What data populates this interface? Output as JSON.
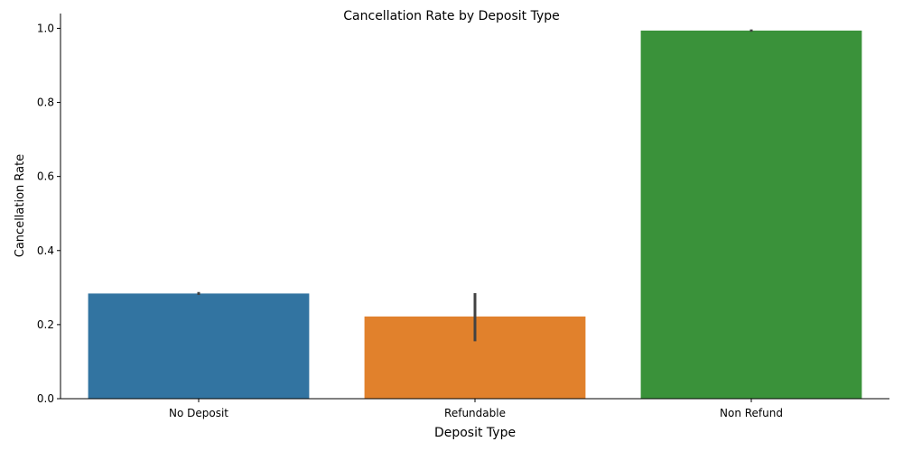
{
  "chart_data": {
    "type": "bar",
    "title": "Cancellation Rate by Deposit Type",
    "xlabel": "Deposit Type",
    "ylabel": "Cancellation Rate",
    "categories": [
      "No Deposit",
      "Refundable",
      "Non Refund"
    ],
    "values": [
      0.284,
      0.222,
      0.994
    ],
    "error_bars": [
      [
        0.28,
        0.288
      ],
      [
        0.155,
        0.285
      ],
      [
        0.991,
        0.997
      ]
    ],
    "colors": [
      "#3274a1",
      "#e1812c",
      "#3a923a"
    ],
    "error_color": "#424242",
    "ylim": [
      0,
      1.04
    ],
    "yticks": [
      "0.0",
      "0.2",
      "0.4",
      "0.6",
      "0.8",
      "1.0"
    ],
    "grid": false,
    "legend": "none"
  }
}
